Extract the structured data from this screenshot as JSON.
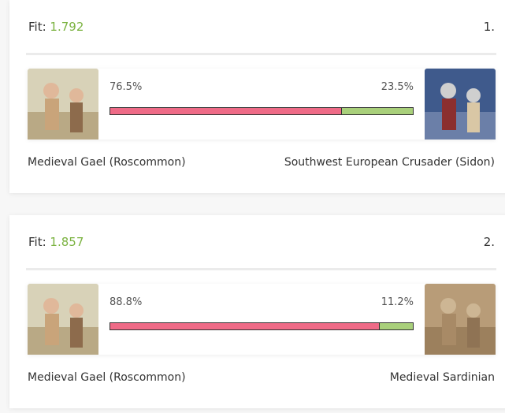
{
  "cards": [
    {
      "fit_label": "Fit:",
      "fit": 1.792,
      "rank": "1.",
      "left": {
        "name": "Medieval Gael (Roscommon)",
        "percent": {
          "value": 76.5,
          "label": "76.5%"
        }
      },
      "right": {
        "name": "Southwest European Crusader (Sidon)",
        "percent": {
          "value": 23.5,
          "label": "23.5%"
        }
      }
    },
    {
      "fit_label": "Fit:",
      "fit": 1.857,
      "rank": "2.",
      "left": {
        "name": "Medieval Gael (Roscommon)",
        "percent": {
          "value": 88.8,
          "label": "88.8%"
        }
      },
      "right": {
        "name": "Medieval Sardinian",
        "percent": {
          "value": 11.2,
          "label": "11.2%"
        }
      }
    }
  ]
}
